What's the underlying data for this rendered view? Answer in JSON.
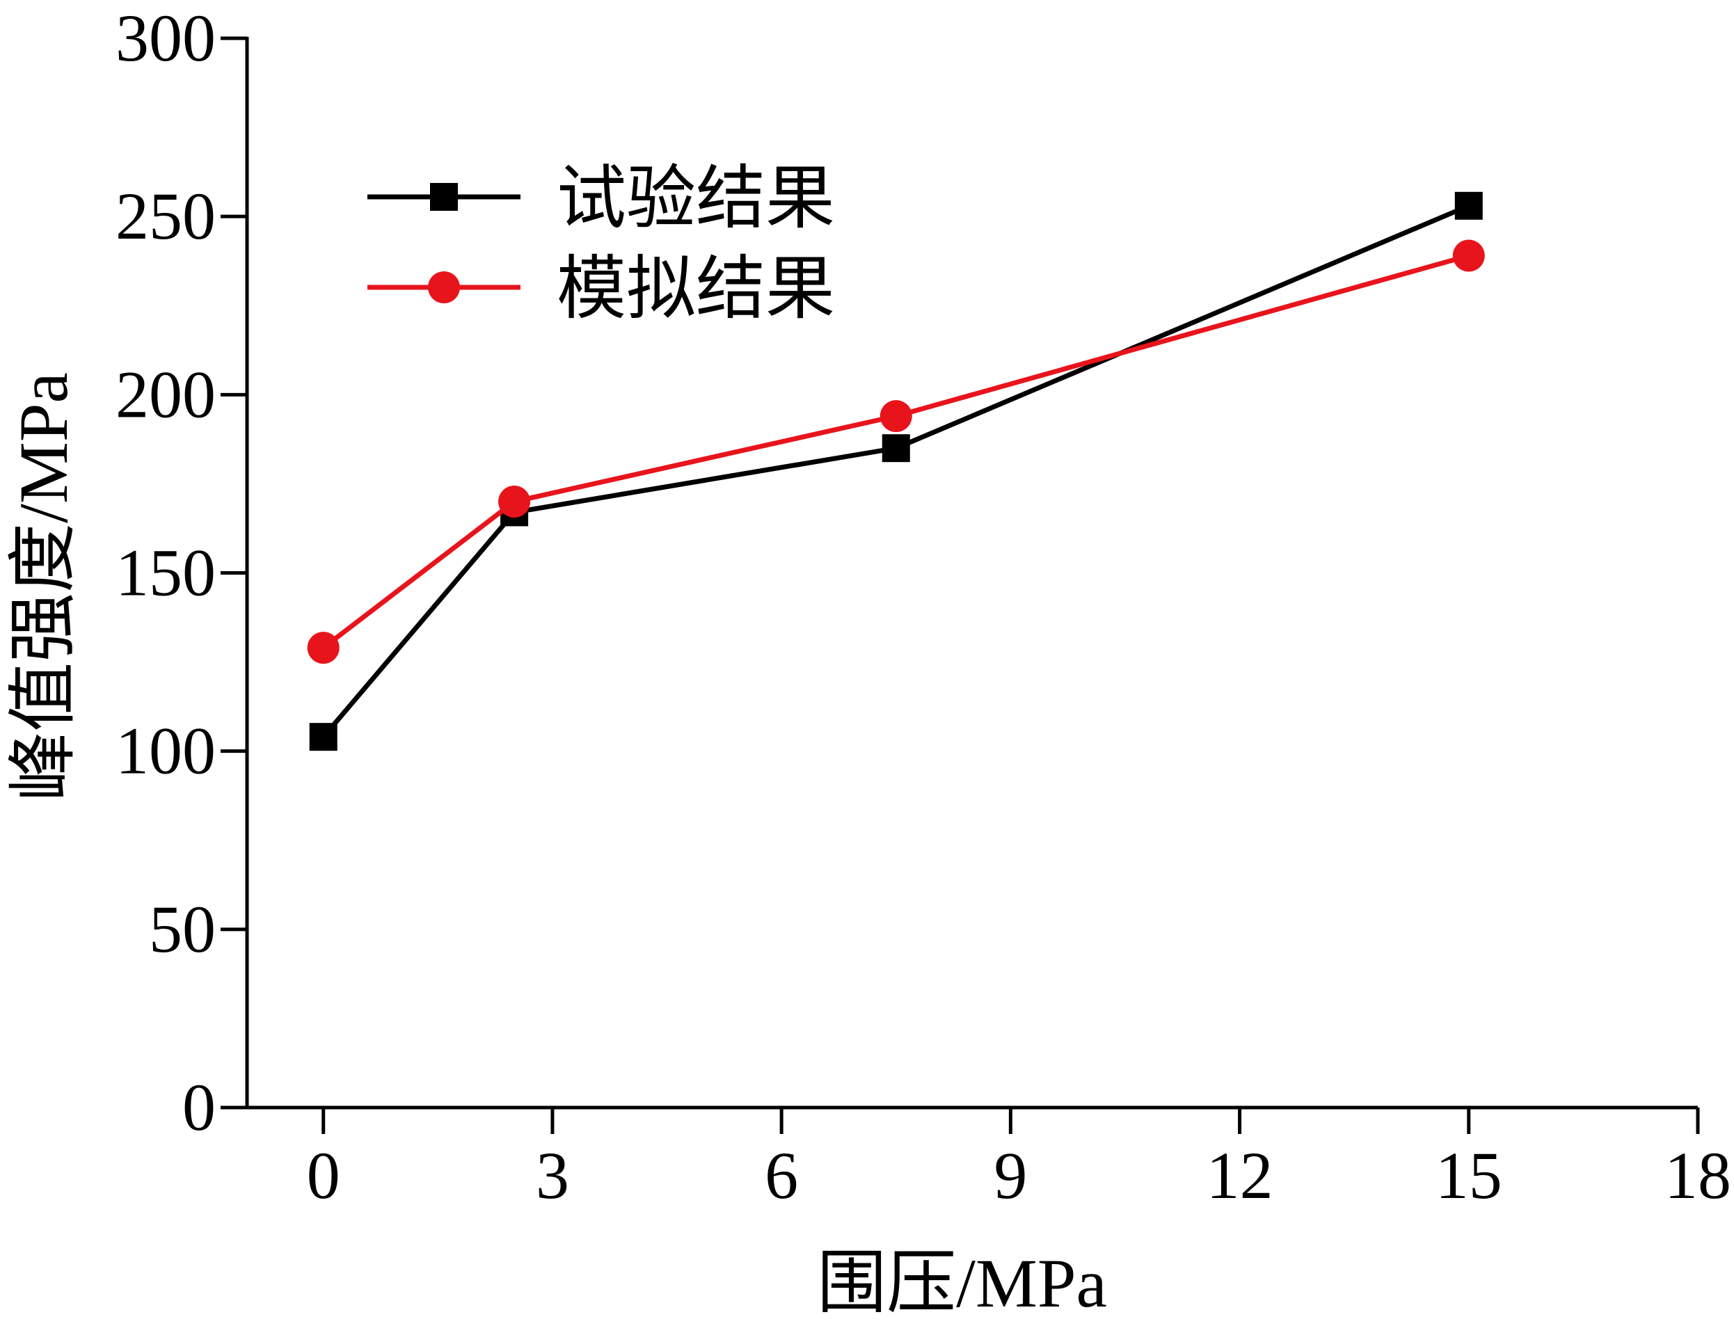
{
  "chart_data": {
    "type": "line",
    "title": "",
    "xlabel": "围压/MPa",
    "ylabel": "峰值强度/MPa",
    "xlim": [
      -1,
      18
    ],
    "ylim": [
      0,
      300
    ],
    "xticks": [
      0,
      3,
      6,
      9,
      12,
      15,
      18
    ],
    "yticks": [
      0,
      50,
      100,
      150,
      200,
      250,
      300
    ],
    "grid": false,
    "legend_position": "top-left",
    "x": [
      0,
      2.5,
      7.5,
      15
    ],
    "series": [
      {
        "name": "试验结果",
        "color": "#000000",
        "marker": "square",
        "values": [
          104,
          167,
          185,
          253
        ]
      },
      {
        "name": "模拟结果",
        "color": "#e8141c",
        "marker": "circle",
        "values": [
          129,
          170,
          194,
          239
        ]
      }
    ]
  }
}
